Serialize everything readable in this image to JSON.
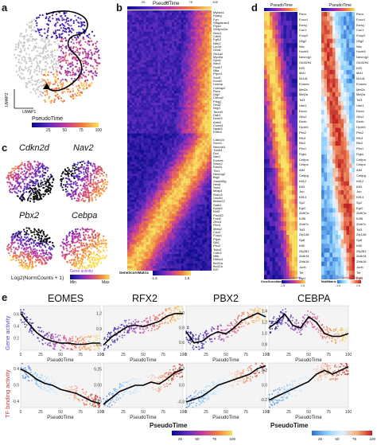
{
  "panels": {
    "a": "a",
    "b": "b",
    "c": "c",
    "d": "d",
    "e": "e"
  },
  "panel_a": {
    "xlabel": "UMAP1",
    "ylabel": "UMAP2",
    "legend_title": "PseudoTime",
    "ticks": [
      "25",
      "50",
      "75",
      "100"
    ]
  },
  "panel_b": {
    "top_label": "PseudoTime",
    "top_ticks": [
      "0",
      "25",
      "50",
      "75",
      "100"
    ],
    "left_label": "GeneScoreMatrix",
    "legend_title": "Gene activity",
    "legend_ticks": [
      "-1.5",
      "1.5"
    ],
    "genes_top": [
      "Mybpc1",
      "Pparg",
      "Fyn",
      "St6galnac3",
      "Ptprd",
      "Sh3pxd2a",
      "Nrxn1",
      "Cdh8",
      "Fgf12",
      "Ntrk2",
      "Lrp1b",
      "Gria1",
      "Slc1a2",
      "Myo5a",
      "Gpc6",
      "Nav3",
      "Pcdh7",
      "Nfia",
      "Ptprz1",
      "Sox5",
      "Kcnd2",
      "Lsamp",
      "Cntnap2",
      "Rora",
      "Dlg2",
      "Ctnna2",
      "Prkg1",
      "Grid2",
      "Nrg3",
      "Tenm3",
      "Dab1",
      "Kirrel3",
      "Auts2",
      "Csmd1",
      "Npas3",
      "Erbb4"
    ],
    "genes_bottom": [
      "Cdkn2d",
      "Sox11",
      "Neurod1",
      "Tubb3",
      "Dcx",
      "Nav2",
      "Eomes",
      "Stmn2",
      "Elavl4",
      "Tbr1",
      "Neurog2",
      "Btg2",
      "Gadd45g",
      "Hes6",
      "Sstr2",
      "Mfap4",
      "Robo2",
      "Unc5d",
      "Bhlhe22",
      "Satb2",
      "Epha3",
      "Ebf3",
      "Pou3f2",
      "Fezf2",
      "Zfhx3",
      "Pbx3",
      "Meis2",
      "Cux2",
      "Foxp1",
      "Ptprk",
      "Slit2",
      "Pbx2",
      "Tshz2",
      "Cntn2",
      "Nfib",
      "Rbfox1",
      "Bcl11a",
      "Bcl11b",
      "Klf7",
      "Cebpa",
      "Lhx2",
      "Mef2c",
      "Plxna4",
      "Ephb1",
      "Sema3c",
      "Pcdh9",
      "Nrp1",
      "Dpysl3",
      "Crmp1",
      "Ablim1",
      "Tcf4",
      "Gap43",
      "Map1b",
      "Syt1",
      "Snap25",
      "Calb2"
    ]
  },
  "panel_c": {
    "genes": [
      "Cdkn2d",
      "Nav2",
      "Pbx2",
      "Cebpa"
    ],
    "legend_label": "Log2(NormCounts + 1)",
    "legend_title": "Gene activity",
    "legend_min": "Min",
    "legend_max": "Max"
  },
  "panel_d": {
    "left_top": "PseudoTime",
    "right_top": "PseudoTime",
    "left_bottom": "GeneScoreMatrix",
    "right_bottom": "MotifMatrix",
    "left_legend": "Gene activity",
    "right_legend": "TF binding activity",
    "legend_lo": "-1.5",
    "legend_hi": "1.5",
    "genes": [
      "Rora",
      "Foxo1",
      "Esrrg",
      "Cux1",
      "Foxp2",
      "Olig2",
      "Nfix",
      "Hoxb5",
      "Neurog2",
      "Gm5294",
      "Klf3",
      "Mxi1",
      "Nr1d1",
      "Eomes",
      "Mef2c",
      "Mef2a",
      "Tcf3",
      "Ube1",
      "Esrra",
      "Gbx2",
      "Esrrb",
      "Hoxb5",
      "Pbx2",
      "Rfx3",
      "Rfx2",
      "Pbx1",
      "Figla",
      "Cebpa",
      "Cebpe",
      "Atf4",
      "Cebpg",
      "Klf12",
      "Klf3",
      "Jun",
      "Klf13",
      "Sp2",
      "Egr2",
      "Zbtb7a",
      "E2f6",
      "Zbtb7c",
      "Tcf3",
      "Zfp148",
      "Sp8",
      "Klf5",
      "Zfp281",
      "Zbtb14",
      "Zbtb16",
      "Junb",
      "Tef",
      "Egr1"
    ]
  },
  "panel_e": {
    "tfs": [
      "EOMES",
      "RFX2",
      "PBX2",
      "CEBPA"
    ],
    "row_labels": [
      "Gene activity",
      "TF binding activity"
    ],
    "xlabel": "PseudoTime",
    "xticks": [
      "0",
      "25",
      "50",
      "75",
      "100"
    ],
    "ga_ticks": [
      [
        "0.6",
        "0.4",
        "0.2"
      ],
      [
        "1.2",
        "0.9",
        "0.6"
      ],
      [
        "1.0",
        "0.8",
        "0.6"
      ],
      [
        "1.4",
        "1.2",
        "1.0",
        "0.8"
      ]
    ],
    "tf_ticks": [
      [
        "0.4",
        "0.0",
        "-0.4"
      ],
      [
        "0.25",
        "0.00",
        "-0.25"
      ],
      [
        "0.3",
        "0.0",
        "-0.3"
      ],
      [
        "0.2",
        "0.0",
        "-0.2"
      ]
    ],
    "legend_title": "PseudoTime",
    "legend_ticks": [
      "25",
      "50",
      "75",
      "100"
    ]
  },
  "chart_data": [
    {
      "type": "line",
      "title": "EOMES",
      "ylabel": "Gene activity",
      "xlabel": "PseudoTime",
      "x": [
        0,
        10,
        20,
        30,
        40,
        50,
        60,
        70,
        80,
        90,
        100
      ],
      "series": [
        {
          "values": [
            0.62,
            0.45,
            0.3,
            0.2,
            0.15,
            0.12,
            0.12,
            0.1,
            0.1,
            0.12,
            0.12
          ]
        }
      ]
    },
    {
      "type": "line",
      "title": "RFX2",
      "ylabel": "Gene activity",
      "xlabel": "PseudoTime",
      "x": [
        0,
        10,
        20,
        30,
        40,
        50,
        60,
        70,
        80,
        90,
        100
      ],
      "series": [
        {
          "values": [
            0.6,
            0.75,
            0.85,
            0.95,
            0.98,
            0.95,
            1.0,
            1.05,
            1.15,
            1.2,
            1.2
          ]
        }
      ]
    },
    {
      "type": "line",
      "title": "PBX2",
      "ylabel": "Gene activity",
      "xlabel": "PseudoTime",
      "x": [
        0,
        10,
        20,
        30,
        40,
        50,
        60,
        70,
        80,
        90,
        100
      ],
      "series": [
        {
          "values": [
            0.75,
            0.6,
            0.62,
            0.7,
            0.75,
            0.72,
            0.8,
            0.9,
            0.95,
            1.0,
            0.95
          ]
        }
      ]
    },
    {
      "type": "line",
      "title": "CEBPA",
      "ylabel": "Gene activity",
      "xlabel": "PseudoTime",
      "x": [
        0,
        10,
        20,
        30,
        40,
        50,
        60,
        70,
        80,
        90,
        100
      ],
      "series": [
        {
          "values": [
            1.1,
            1.2,
            1.35,
            1.15,
            1.1,
            1.3,
            1.2,
            1.0,
            0.95,
            0.95,
            1.0
          ]
        }
      ]
    },
    {
      "type": "line",
      "title": "EOMES",
      "ylabel": "TF binding activity",
      "xlabel": "PseudoTime",
      "x": [
        0,
        10,
        20,
        30,
        40,
        50,
        60,
        70,
        80,
        90,
        100
      ],
      "series": [
        {
          "values": [
            0.4,
            0.3,
            0.15,
            0.05,
            0.0,
            -0.1,
            -0.15,
            -0.2,
            -0.3,
            -0.4,
            -0.45
          ]
        }
      ]
    },
    {
      "type": "line",
      "title": "RFX2",
      "ylabel": "TF binding activity",
      "xlabel": "PseudoTime",
      "x": [
        0,
        10,
        20,
        30,
        40,
        50,
        60,
        70,
        80,
        90,
        100
      ],
      "series": [
        {
          "values": [
            -0.3,
            -0.2,
            -0.1,
            -0.05,
            0.0,
            0.0,
            0.05,
            0.02,
            0.1,
            0.2,
            0.25
          ]
        }
      ]
    },
    {
      "type": "line",
      "title": "PBX2",
      "ylabel": "TF binding activity",
      "xlabel": "PseudoTime",
      "x": [
        0,
        10,
        20,
        30,
        40,
        50,
        60,
        70,
        80,
        90,
        100
      ],
      "series": [
        {
          "values": [
            -0.3,
            -0.25,
            -0.2,
            -0.1,
            0.0,
            0.05,
            0.1,
            0.15,
            0.2,
            0.3,
            0.35
          ]
        }
      ]
    },
    {
      "type": "line",
      "title": "CEBPA",
      "ylabel": "TF binding activity",
      "xlabel": "PseudoTime",
      "x": [
        0,
        10,
        20,
        30,
        40,
        50,
        60,
        70,
        80,
        90,
        100
      ],
      "series": [
        {
          "values": [
            -0.2,
            -0.15,
            -0.1,
            -0.05,
            0.0,
            0.05,
            0.15,
            0.2,
            0.15,
            0.2,
            0.25
          ]
        }
      ]
    }
  ]
}
